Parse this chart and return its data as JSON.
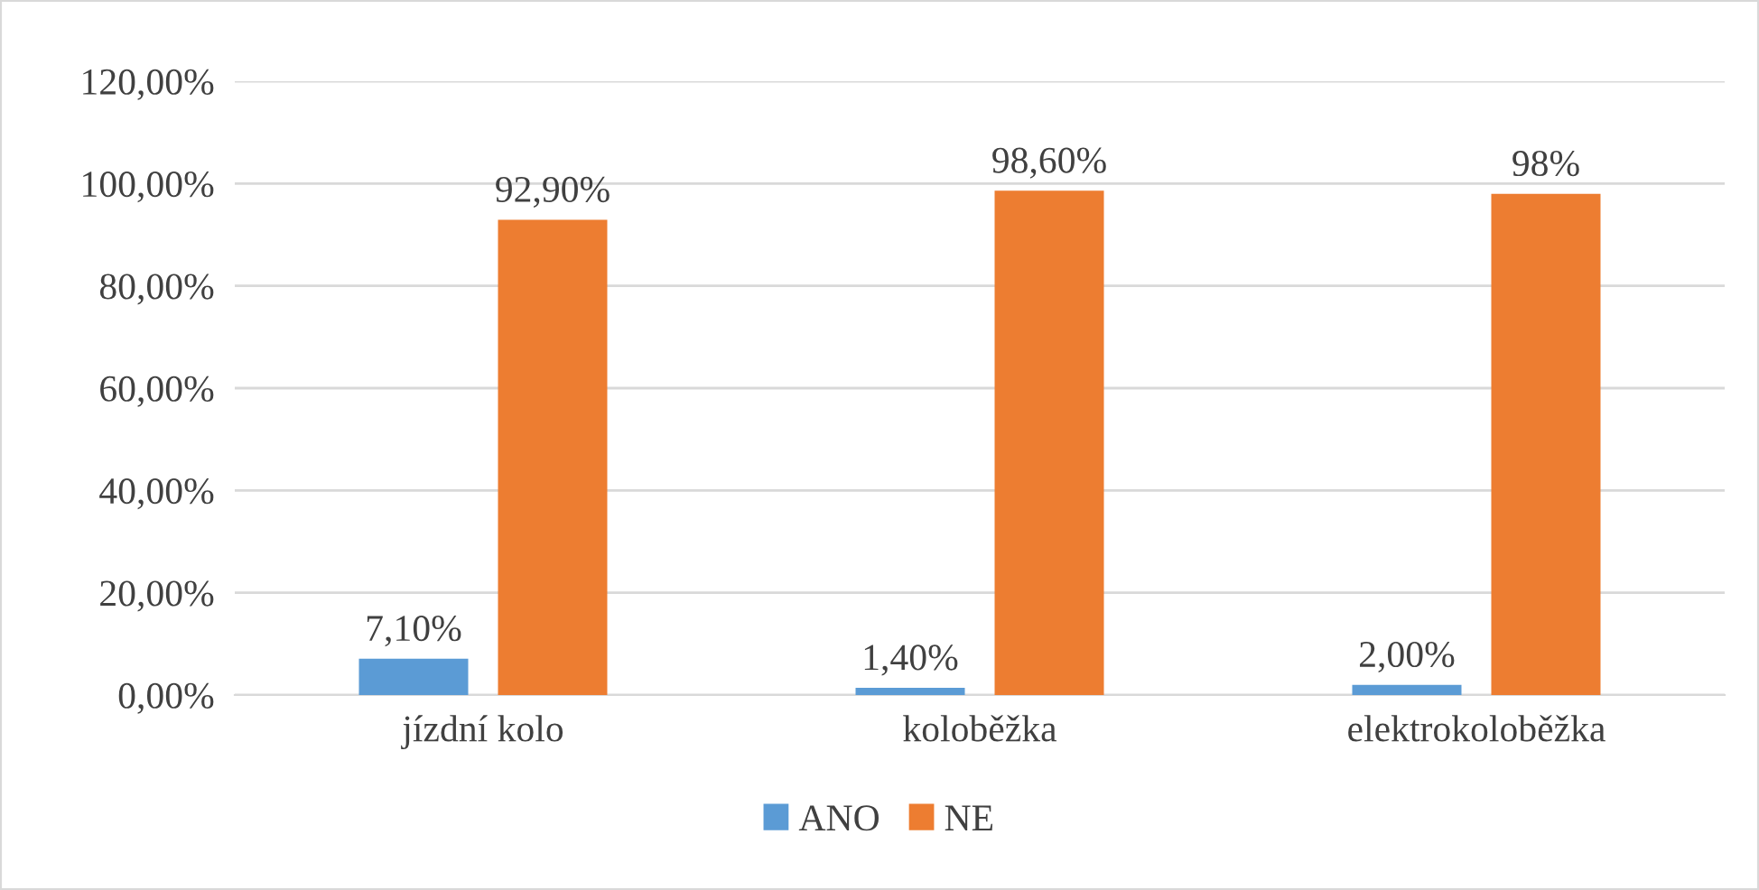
{
  "chart_data": {
    "type": "bar",
    "categories": [
      "jízdní kolo",
      "koloběžka",
      "elektrokoloběžka"
    ],
    "series": [
      {
        "name": "ANO",
        "color": "#5b9bd5",
        "values": [
          7.1,
          1.4,
          2.0
        ],
        "value_labels": [
          "7,10%",
          "1,40%",
          "2,00%"
        ]
      },
      {
        "name": "NE",
        "color": "#ed7d31",
        "values": [
          92.9,
          98.6,
          98
        ],
        "value_labels": [
          "92,90%",
          "98,60%",
          "98%"
        ]
      }
    ],
    "ylim": [
      0,
      120
    ],
    "yticks": [
      {
        "value": 0,
        "label": "0,00%"
      },
      {
        "value": 20,
        "label": "20,00%"
      },
      {
        "value": 40,
        "label": "40,00%"
      },
      {
        "value": 60,
        "label": "60,00%"
      },
      {
        "value": 80,
        "label": "80,00%"
      },
      {
        "value": 100,
        "label": "100,00%"
      },
      {
        "value": 120,
        "label": "120,00%"
      }
    ],
    "grid": "y",
    "legend": "bottom"
  }
}
